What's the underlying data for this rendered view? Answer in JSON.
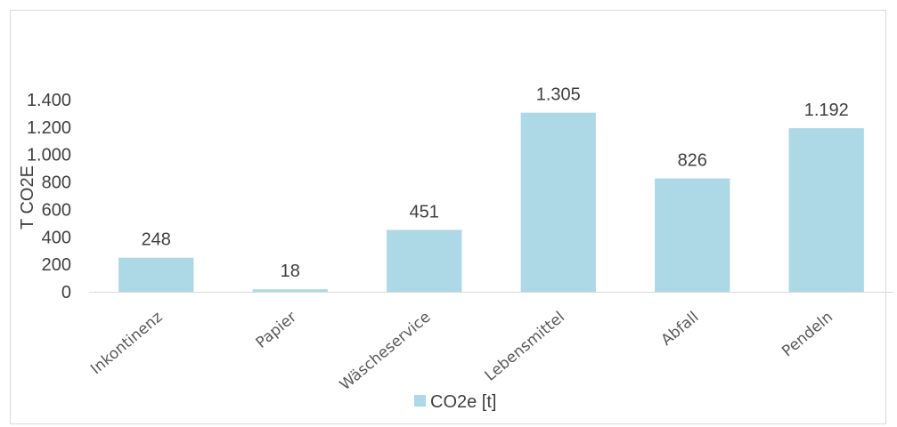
{
  "chart_data": {
    "type": "bar",
    "categories": [
      "Inkontinenz",
      "Papier",
      "Wäscheservice",
      "Lebensmittel",
      "Abfall",
      "Pendeln"
    ],
    "series": [
      {
        "name": "CO2e [t]",
        "values": [
          248,
          18,
          451,
          1305,
          826,
          1192
        ]
      }
    ],
    "value_labels": [
      "248",
      "18",
      "451",
      "1.305",
      "826",
      "1.192"
    ],
    "title": "",
    "xlabel": "",
    "ylabel": "T CO2E",
    "ylim": [
      0,
      1400
    ],
    "yticks": [
      0,
      200,
      400,
      600,
      800,
      1000,
      1200,
      1400
    ],
    "ytick_labels": [
      "0",
      "200",
      "400",
      "600",
      "800",
      "1.000",
      "1.200",
      "1.400"
    ],
    "grid": false,
    "legend": "bottom",
    "bar_color": "#add8e6"
  }
}
